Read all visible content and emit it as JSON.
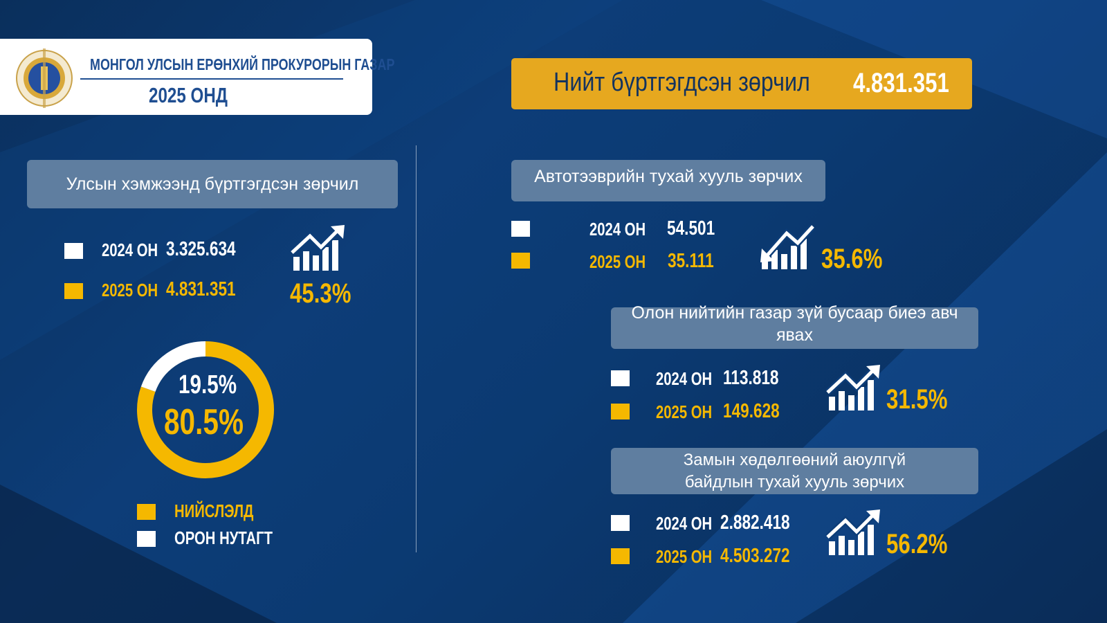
{
  "header": {
    "org": "МОНГОЛ УЛСЫН ЕРӨНХИЙ ПРОКУРОРЫН ГАЗАР",
    "year": "2025 ОНД",
    "logo_text": "МОНГОЛ УЛСЫН ПРОКУРОР"
  },
  "banner": {
    "label": "Нийт бүртгэгдсэн зөрчил",
    "value": "4.831.351"
  },
  "colors": {
    "y2024": "#ffffff",
    "y2025": "#f5b800",
    "banner": "#e6a81f"
  },
  "national": {
    "title": "Улсын хэмжээнд бүртгэгдсэн зөрчил",
    "rows": [
      {
        "year": "2024 ОН",
        "value": "3.325.634"
      },
      {
        "year": "2025 ОН",
        "value": "4.831.351"
      }
    ],
    "change": "45.3%",
    "trend": "up"
  },
  "chart_data": {
    "type": "pie",
    "title": "",
    "donut": true,
    "slices": [
      {
        "label": "НИЙСЛЭЛД",
        "value": 80.5,
        "display": "80.5%",
        "color": "#f5b800"
      },
      {
        "label": "ОРОН НУТАГТ",
        "value": 19.5,
        "display": "19.5%",
        "color": "#ffffff"
      }
    ],
    "legend": "bottom"
  },
  "categories": [
    {
      "title": "Автотээврийн тухай хууль зөрчих",
      "rows": [
        {
          "year": "2024 ОН",
          "value": "54.501"
        },
        {
          "year": "2025 ОН",
          "value": "35.111"
        }
      ],
      "change": "35.6%",
      "trend": "down"
    },
    {
      "title": "Олон нийтийн газар зүй бусаар биеэ авч явах",
      "rows": [
        {
          "year": "2024 ОН",
          "value": "113.818"
        },
        {
          "year": "2025 ОН",
          "value": "149.628"
        }
      ],
      "change": "31.5%",
      "trend": "up"
    },
    {
      "title": "Замын хөдөлгөөний аюулгүй байдлын тухай хууль зөрчих",
      "rows": [
        {
          "year": "2024 ОН",
          "value": "2.882.418"
        },
        {
          "year": "2025 ОН",
          "value": "4.503.272"
        }
      ],
      "change": "56.2%",
      "trend": "up"
    }
  ]
}
